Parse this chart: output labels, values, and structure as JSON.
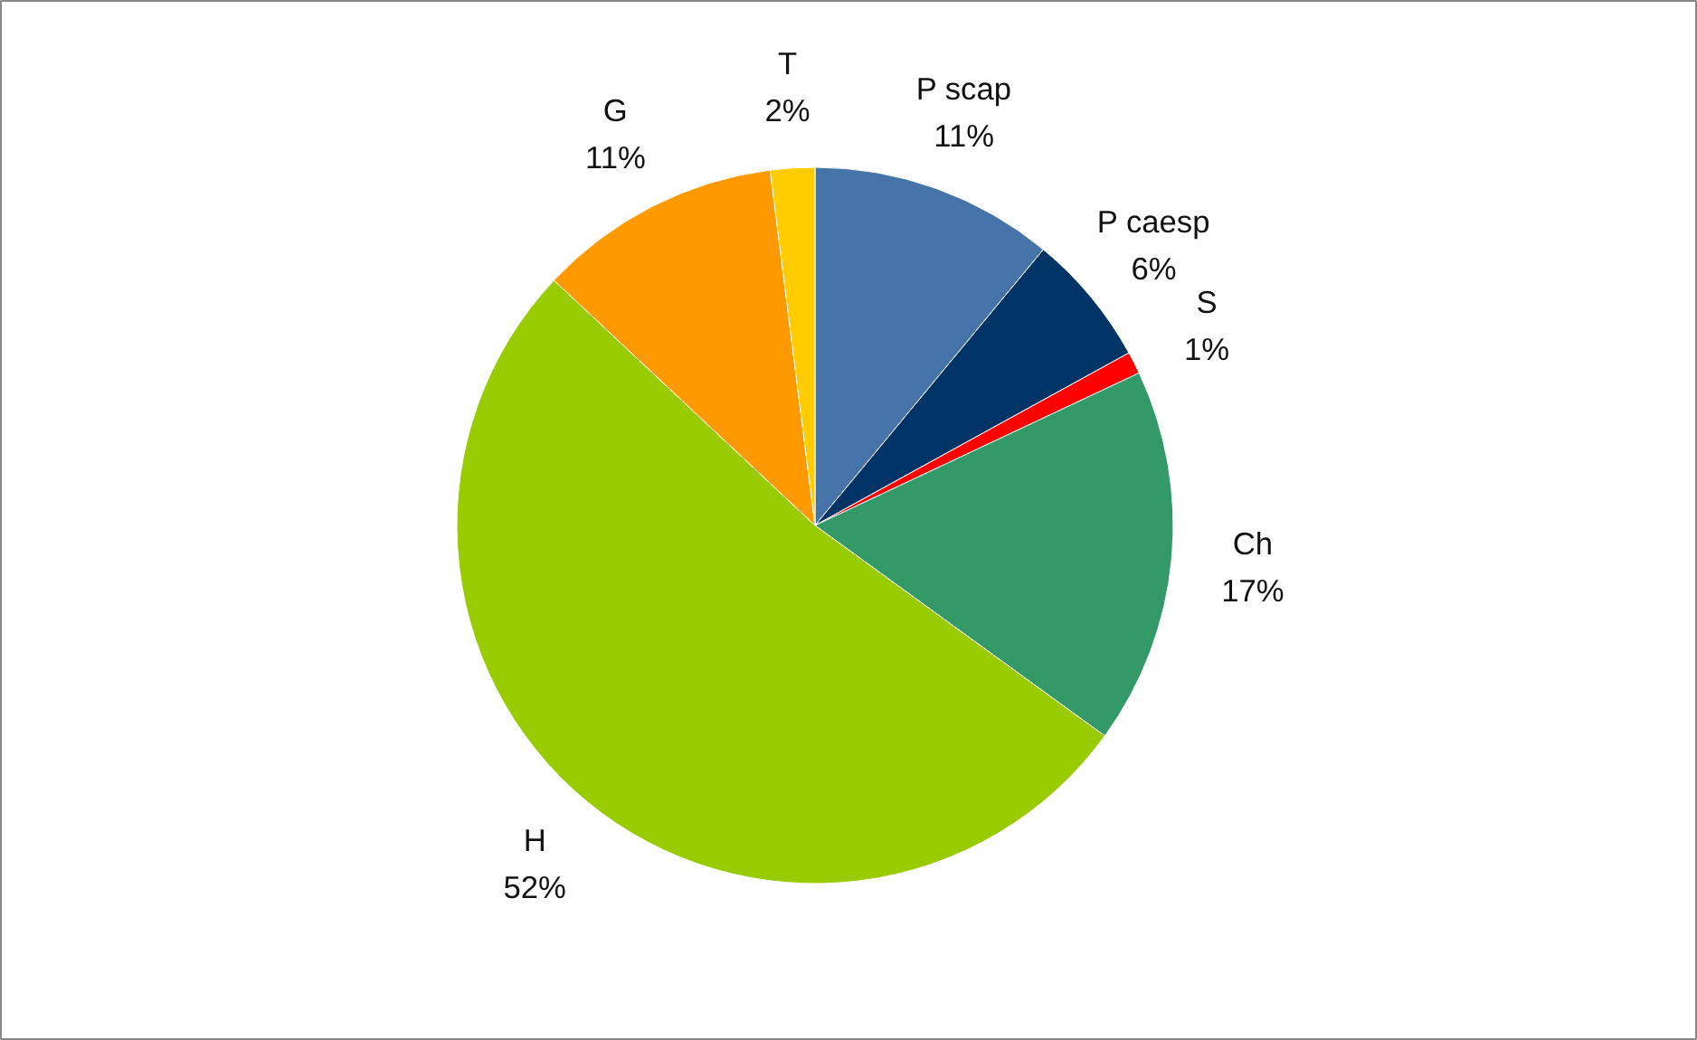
{
  "chart_data": {
    "type": "pie",
    "categories": [
      "P scap",
      "P caesp",
      "S",
      "Ch",
      "H",
      "G",
      "T"
    ],
    "values": [
      11,
      6,
      1,
      17,
      52,
      11,
      2
    ],
    "colors": [
      "#4774a8",
      "#003366",
      "#ff0000",
      "#339966",
      "#99cc00",
      "#ff9900",
      "#ffcc00"
    ],
    "value_labels": [
      "11%",
      "6%",
      "1%",
      "17%",
      "52%",
      "11%",
      "2%"
    ]
  }
}
